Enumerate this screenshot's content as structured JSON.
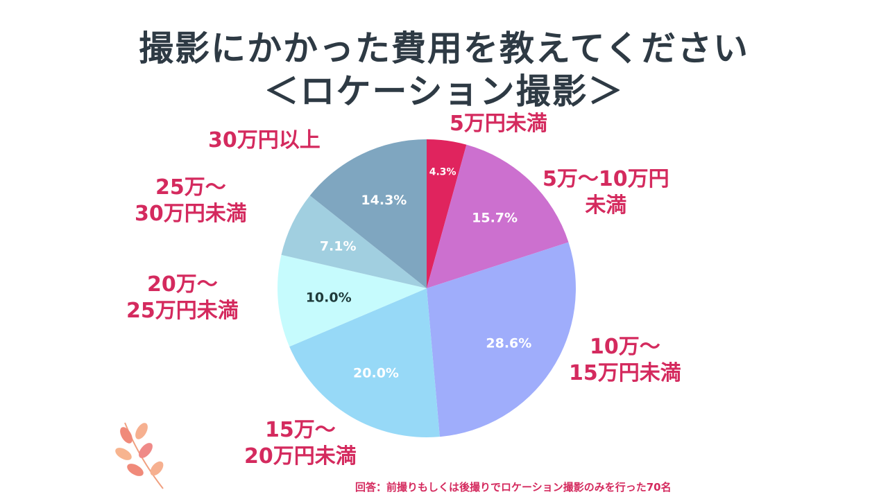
{
  "chart_data": {
    "type": "pie",
    "title": "撮影にかかった費用を教えてください",
    "subtitle": "＜ロケーション撮影＞",
    "categories": [
      "5万円未満",
      "5万～10万円\n未満",
      "10万～\n15万円未満",
      "15万～\n20万円未満",
      "20万～\n25万円未満",
      "25万～\n30万円未満",
      "30万円以上"
    ],
    "values": [
      4.3,
      15.7,
      28.6,
      20.0,
      10.0,
      7.1,
      14.3
    ],
    "data_labels": [
      "4.3%",
      "15.7%",
      "28.6%",
      "20.0%",
      "10.0%",
      "7.1%",
      "14.3%"
    ],
    "colors": [
      "#e0245e",
      "#cc70cf",
      "#9fadfb",
      "#97d9f7",
      "#c6fbfd",
      "#a1cfe0",
      "#7fa6c0"
    ],
    "label_colors": [
      "#ffffff",
      "#ffffff",
      "#ffffff",
      "#ffffff",
      "#1e3a3a",
      "#ffffff",
      "#ffffff"
    ],
    "start": "12 o'clock, clockwise",
    "legend": "none",
    "label_color": "#d42a5e"
  },
  "footnote": "回答：前撮りもしくは後撮りでロケーション撮影のみを行った70名"
}
